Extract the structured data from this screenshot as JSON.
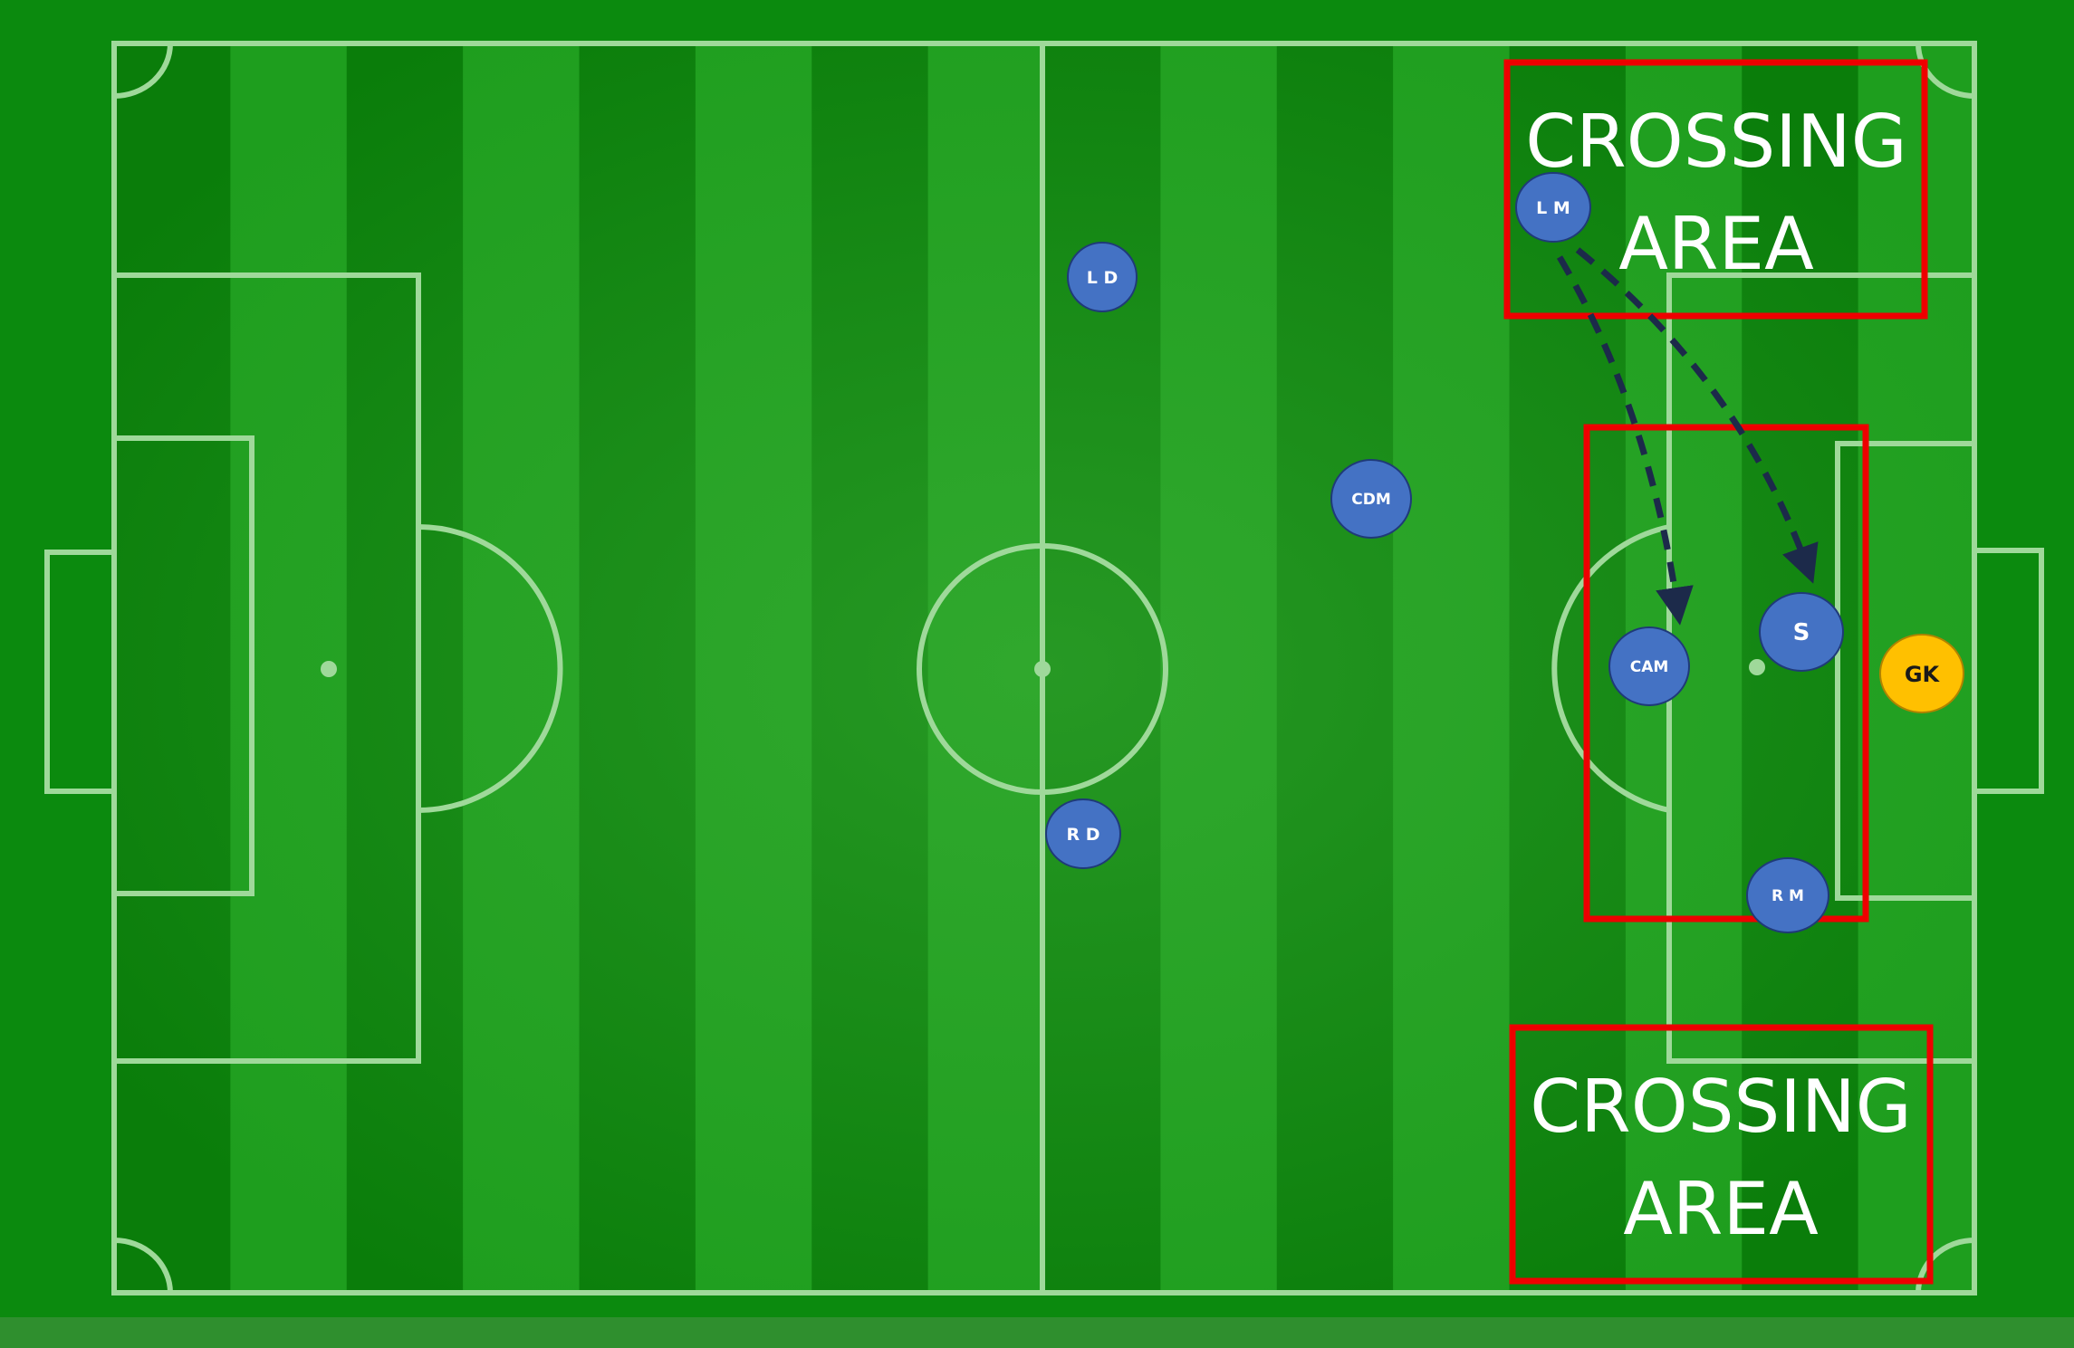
{
  "zones": [
    {
      "id": "top",
      "line1": "CROSSING",
      "line2": "AREA",
      "color": "#ee0000"
    },
    {
      "id": "bottom",
      "line1": "CROSSING",
      "line2": "AREA",
      "color": "#ee0000"
    }
  ],
  "players": [
    {
      "id": "lm",
      "label": "L M",
      "team": "attack"
    },
    {
      "id": "ld",
      "label": "L D",
      "team": "attack"
    },
    {
      "id": "cdm",
      "label": "CDM",
      "team": "attack"
    },
    {
      "id": "cam",
      "label": "CAM",
      "team": "attack"
    },
    {
      "id": "s",
      "label": "S",
      "team": "attack"
    },
    {
      "id": "rd",
      "label": "R D",
      "team": "attack"
    },
    {
      "id": "rm",
      "label": "R M",
      "team": "attack"
    },
    {
      "id": "gk",
      "label": "GK",
      "team": "keeper"
    }
  ],
  "passes": [
    {
      "from": "lm",
      "to": "cam",
      "style": "dashed"
    },
    {
      "from": "lm",
      "to": "s",
      "style": "dashed"
    }
  ],
  "colors": {
    "pitch_dark": "#0a7d0a",
    "pitch_light": "#1e9e1e",
    "lines": "#9fd99a",
    "player_fill": "#4472c4",
    "keeper_fill": "#ffc000",
    "arrow": "#1c2a4a",
    "zone_border": "#ee0000"
  }
}
